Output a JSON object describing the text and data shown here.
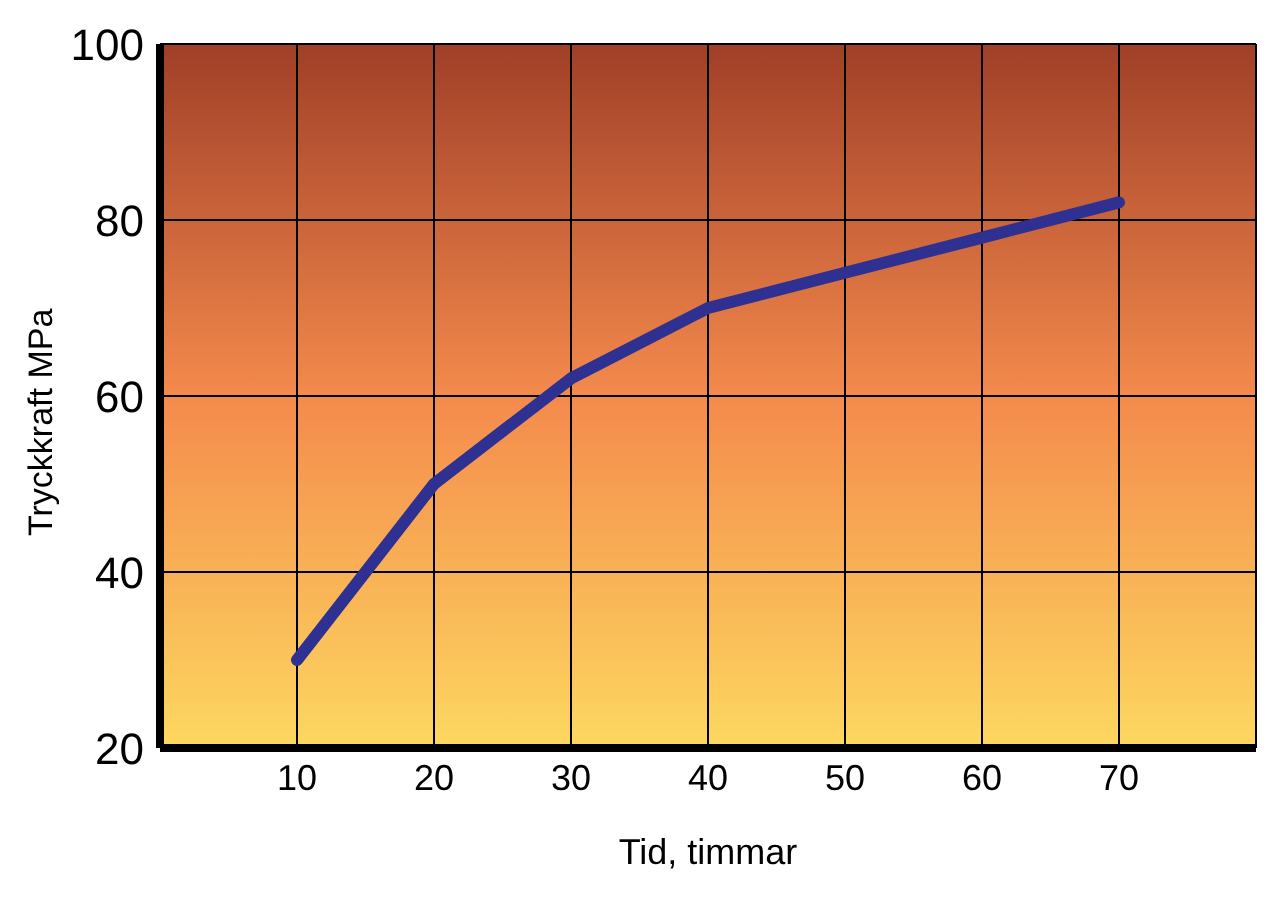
{
  "chart_data": {
    "type": "line",
    "xlabel": "Tid, timmar",
    "ylabel": "Tryckkraft MPa",
    "x": [
      10,
      20,
      30,
      40,
      50,
      60,
      70
    ],
    "series": [
      {
        "color": "#2e3192",
        "values": [
          30,
          50,
          62,
          70,
          74,
          78,
          82
        ]
      }
    ],
    "xlim": [
      0,
      80
    ],
    "xticks": [
      10,
      20,
      30,
      40,
      50,
      60,
      70
    ],
    "ylim": [
      20,
      100
    ],
    "yticks": [
      20,
      40,
      60,
      80,
      100
    ],
    "grid": true,
    "marker": "none",
    "line_style": "solid",
    "legend": false
  }
}
